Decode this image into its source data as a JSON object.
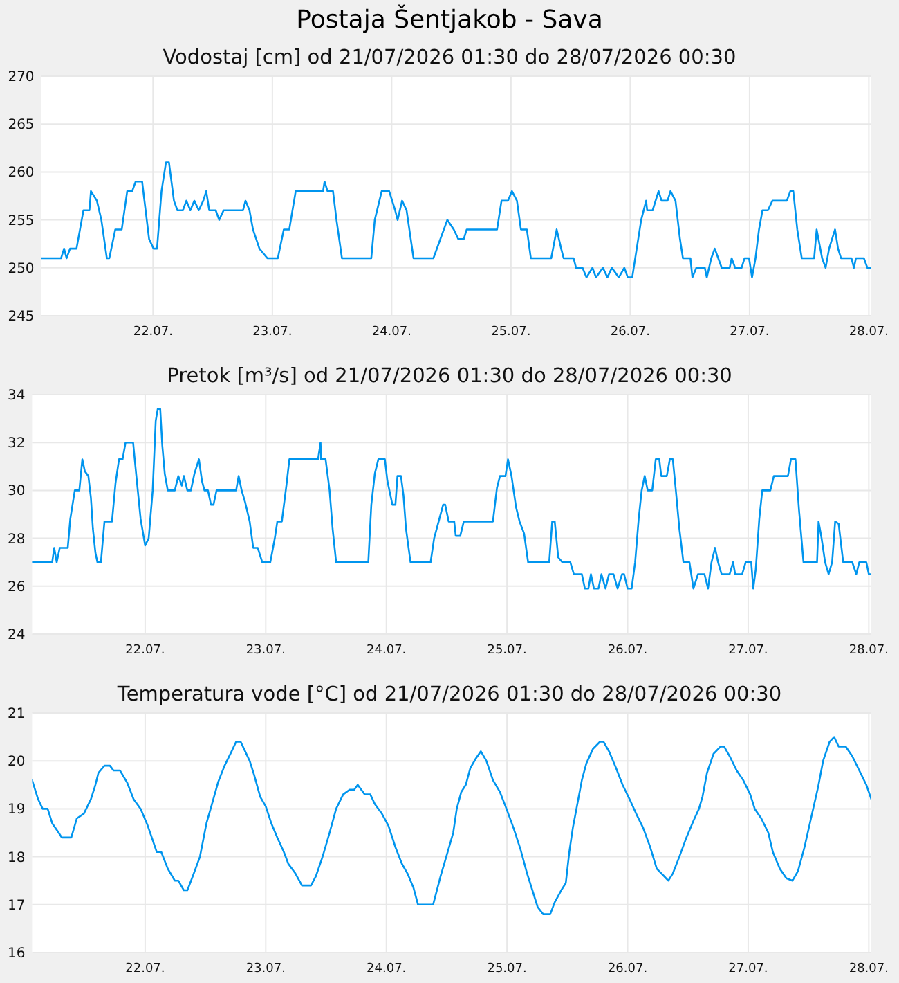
{
  "chart_data": [
    {
      "type": "line",
      "title": "Postaja Šentjakob - Sava",
      "subtitle": "Vodostaj [cm] od 21/07/2026 01:30 do 28/07/2026 00:30",
      "grid": true,
      "x": [
        "2026-07-21T01:30",
        "2026-07-21T05:30",
        "2026-07-21T06:06",
        "2026-07-21T06:36",
        "2026-07-21T07:18",
        "2026-07-21T08:36",
        "2026-07-21T10:00",
        "2026-07-21T11:12",
        "2026-07-21T11:30",
        "2026-07-21T12:42",
        "2026-07-21T13:36",
        "2026-07-21T14:42",
        "2026-07-21T15:12",
        "2026-07-21T16:24",
        "2026-07-21T17:42",
        "2026-07-21T18:48",
        "2026-07-21T19:48",
        "2026-07-21T20:30",
        "2026-07-21T21:48",
        "2026-07-21T23:12",
        "2026-07-22T00:06",
        "2026-07-22T00:48",
        "2026-07-22T01:42",
        "2026-07-22T02:36",
        "2026-07-22T03:12",
        "2026-07-22T04:12",
        "2026-07-22T04:54",
        "2026-07-22T06:00",
        "2026-07-22T06:42",
        "2026-07-22T07:30",
        "2026-07-22T08:18",
        "2026-07-22T09:12",
        "2026-07-22T10:06",
        "2026-07-22T10:42",
        "2026-07-22T11:18",
        "2026-07-22T12:36",
        "2026-07-22T13:18",
        "2026-07-22T14:12",
        "2026-07-22T18:06",
        "2026-07-22T18:36",
        "2026-07-22T19:24",
        "2026-07-22T20:06",
        "2026-07-22T21:24",
        "2026-07-22T23:00",
        "2026-07-23T01:06",
        "2026-07-23T02:18",
        "2026-07-23T03:24",
        "2026-07-23T04:42",
        "2026-07-23T10:12",
        "2026-07-23T10:30",
        "2026-07-23T11:06",
        "2026-07-23T12:12",
        "2026-07-23T12:54",
        "2026-07-23T14:00",
        "2026-07-23T19:54",
        "2026-07-23T20:36",
        "2026-07-23T22:00",
        "2026-07-23T23:30",
        "2026-07-24T00:42",
        "2026-07-24T01:12",
        "2026-07-24T02:06",
        "2026-07-24T03:00",
        "2026-07-24T04:24",
        "2026-07-24T08:24",
        "2026-07-24T09:48",
        "2026-07-24T11:12",
        "2026-07-24T12:30",
        "2026-07-24T13:24",
        "2026-07-24T14:30",
        "2026-07-24T15:06",
        "2026-07-24T21:12",
        "2026-07-24T22:06",
        "2026-07-24T23:24",
        "2026-07-25T00:12",
        "2026-07-25T01:12",
        "2026-07-25T02:00",
        "2026-07-25T03:12",
        "2026-07-25T04:00",
        "2026-07-25T08:06",
        "2026-07-25T09:12",
        "2026-07-25T10:06",
        "2026-07-25T10:36",
        "2026-07-25T12:36",
        "2026-07-25T13:06",
        "2026-07-25T14:24",
        "2026-07-25T15:12",
        "2026-07-25T16:24",
        "2026-07-25T17:06",
        "2026-07-25T18:30",
        "2026-07-25T19:24",
        "2026-07-25T20:18",
        "2026-07-25T21:42",
        "2026-07-25T22:48",
        "2026-07-25T23:30",
        "2026-07-26T00:24",
        "2026-07-26T01:18",
        "2026-07-26T02:12",
        "2026-07-26T03:12",
        "2026-07-26T03:24",
        "2026-07-26T04:30",
        "2026-07-26T05:42",
        "2026-07-26T06:18",
        "2026-07-26T07:30",
        "2026-07-26T08:06",
        "2026-07-26T09:06",
        "2026-07-26T10:00",
        "2026-07-26T10:36",
        "2026-07-26T12:06",
        "2026-07-26T12:30",
        "2026-07-26T13:18",
        "2026-07-26T15:00",
        "2026-07-26T15:24",
        "2026-07-26T16:18",
        "2026-07-26T17:00",
        "2026-07-26T17:42",
        "2026-07-26T18:24",
        "2026-07-26T20:00",
        "2026-07-26T20:24",
        "2026-07-26T21:06",
        "2026-07-26T22:24",
        "2026-07-26T23:00",
        "2026-07-26T23:54",
        "2026-07-27T00:30",
        "2026-07-27T01:12",
        "2026-07-27T01:54",
        "2026-07-27T02:36",
        "2026-07-27T03:42",
        "2026-07-27T04:36",
        "2026-07-27T07:30",
        "2026-07-27T08:12",
        "2026-07-27T08:48",
        "2026-07-27T09:36",
        "2026-07-27T10:30",
        "2026-07-27T13:00",
        "2026-07-27T13:30",
        "2026-07-27T14:36",
        "2026-07-27T15:18",
        "2026-07-27T16:00",
        "2026-07-27T17:12",
        "2026-07-27T17:48",
        "2026-07-27T18:24",
        "2026-07-27T20:30",
        "2026-07-27T21:00",
        "2026-07-27T21:24",
        "2026-07-27T23:00",
        "2026-07-27T23:42",
        "2026-07-28T00:30"
      ],
      "series": [
        {
          "color": "#0095ee",
          "values": [
            251,
            251,
            252,
            251,
            252,
            252,
            256,
            256,
            258,
            257,
            255,
            251,
            251,
            254,
            254,
            258,
            258,
            259,
            259,
            253,
            252,
            252,
            258,
            261,
            261,
            257,
            256,
            256,
            257,
            256,
            257,
            256,
            257,
            258,
            256,
            256,
            255,
            256,
            256,
            257,
            256,
            254,
            252,
            251,
            251,
            254,
            254,
            258,
            258,
            259,
            258,
            258,
            255,
            251,
            251,
            255,
            258,
            258,
            256,
            255,
            257,
            256,
            251,
            251,
            253,
            255,
            254,
            253,
            253,
            254,
            254,
            257,
            257,
            258,
            257,
            254,
            254,
            251,
            251,
            254,
            252,
            251,
            251,
            250,
            250,
            249,
            250,
            249,
            250,
            249,
            250,
            249,
            250,
            249,
            249,
            252,
            255,
            257,
            256,
            256,
            258,
            257,
            257,
            258,
            257,
            253,
            251,
            251,
            249,
            250,
            250,
            249,
            251,
            252,
            251,
            250,
            250,
            251,
            250,
            250,
            251,
            251,
            249,
            251,
            254,
            256,
            256,
            257,
            257,
            258,
            258,
            254,
            251,
            251,
            254,
            251,
            250,
            252,
            254,
            252,
            251,
            251,
            250,
            251,
            251,
            250,
            250
          ]
        }
      ],
      "xlim": [
        "2026-07-21T01:30",
        "2026-07-28T00:30"
      ],
      "xticks": [
        {
          "value": "2026-07-22",
          "label": "22.07."
        },
        {
          "value": "2026-07-23",
          "label": "23.07."
        },
        {
          "value": "2026-07-24",
          "label": "24.07."
        },
        {
          "value": "2026-07-25",
          "label": "25.07."
        },
        {
          "value": "2026-07-26",
          "label": "26.07."
        },
        {
          "value": "2026-07-27",
          "label": "27.07."
        },
        {
          "value": "2026-07-28",
          "label": "28.07."
        }
      ],
      "ylim": [
        245,
        270
      ],
      "yticks": [
        245,
        250,
        255,
        260,
        265,
        270
      ]
    },
    {
      "type": "line",
      "title": "Pretok [m³/s] od 21/07/2026 01:30 do 28/07/2026 00:30",
      "grid": true,
      "x": [
        "2026-07-21T01:30",
        "2026-07-21T05:30",
        "2026-07-21T05:54",
        "2026-07-21T06:24",
        "2026-07-21T07:00",
        "2026-07-21T08:36",
        "2026-07-21T09:06",
        "2026-07-21T10:00",
        "2026-07-21T10:54",
        "2026-07-21T11:30",
        "2026-07-21T12:00",
        "2026-07-21T12:42",
        "2026-07-21T13:12",
        "2026-07-21T13:36",
        "2026-07-21T14:06",
        "2026-07-21T14:30",
        "2026-07-21T15:12",
        "2026-07-21T15:54",
        "2026-07-21T17:24",
        "2026-07-21T18:06",
        "2026-07-21T18:48",
        "2026-07-21T19:30",
        "2026-07-21T20:06",
        "2026-07-21T21:36",
        "2026-07-21T22:12",
        "2026-07-21T23:06",
        "2026-07-22T00:00",
        "2026-07-22T00:42",
        "2026-07-22T01:30",
        "2026-07-22T02:06",
        "2026-07-22T02:30",
        "2026-07-22T03:00",
        "2026-07-22T03:24",
        "2026-07-22T03:54",
        "2026-07-22T04:30",
        "2026-07-22T05:54",
        "2026-07-22T06:36",
        "2026-07-22T07:18",
        "2026-07-22T07:42",
        "2026-07-22T08:24",
        "2026-07-22T09:06",
        "2026-07-22T09:48",
        "2026-07-22T10:42",
        "2026-07-22T11:18",
        "2026-07-22T11:48",
        "2026-07-22T12:30",
        "2026-07-22T13:06",
        "2026-07-22T13:36",
        "2026-07-22T14:12",
        "2026-07-22T18:06",
        "2026-07-22T18:36",
        "2026-07-22T19:12",
        "2026-07-22T19:54",
        "2026-07-22T20:48",
        "2026-07-22T21:30",
        "2026-07-22T22:24",
        "2026-07-22T23:18",
        "2026-07-23T00:54",
        "2026-07-23T01:48",
        "2026-07-23T02:18",
        "2026-07-23T03:12",
        "2026-07-23T04:06",
        "2026-07-23T04:42",
        "2026-07-23T10:24",
        "2026-07-23T10:54",
        "2026-07-23T11:00",
        "2026-07-23T11:54",
        "2026-07-23T12:42",
        "2026-07-23T13:18",
        "2026-07-23T14:00",
        "2026-07-23T20:24",
        "2026-07-23T21:00",
        "2026-07-23T21:42",
        "2026-07-23T22:24",
        "2026-07-23T23:42",
        "2026-07-24T00:12",
        "2026-07-24T01:12",
        "2026-07-24T01:48",
        "2026-07-24T02:12",
        "2026-07-24T02:54",
        "2026-07-24T03:24",
        "2026-07-24T03:54",
        "2026-07-24T04:48",
        "2026-07-24T08:48",
        "2026-07-24T09:30",
        "2026-07-24T10:24",
        "2026-07-24T11:18",
        "2026-07-24T11:42",
        "2026-07-24T12:24",
        "2026-07-24T13:30",
        "2026-07-24T13:48",
        "2026-07-24T14:42",
        "2026-07-24T15:24",
        "2026-07-24T21:12",
        "2026-07-24T22:00",
        "2026-07-24T22:36",
        "2026-07-24T23:42",
        "2026-07-25T00:12",
        "2026-07-25T00:54",
        "2026-07-25T01:48",
        "2026-07-25T02:30",
        "2026-07-25T03:24",
        "2026-07-25T04:12",
        "2026-07-25T08:24",
        "2026-07-25T09:00",
        "2026-07-25T09:30",
        "2026-07-25T10:12",
        "2026-07-25T11:00",
        "2026-07-25T12:36",
        "2026-07-25T13:18",
        "2026-07-25T14:54",
        "2026-07-25T15:30",
        "2026-07-25T16:12",
        "2026-07-25T16:42",
        "2026-07-25T17:18",
        "2026-07-25T18:12",
        "2026-07-25T18:48",
        "2026-07-25T19:36",
        "2026-07-25T20:18",
        "2026-07-25T21:12",
        "2026-07-25T22:00",
        "2026-07-25T22:54",
        "2026-07-25T23:18",
        "2026-07-26T00:00",
        "2026-07-26T00:48",
        "2026-07-26T01:30",
        "2026-07-26T02:12",
        "2026-07-26T02:48",
        "2026-07-26T03:24",
        "2026-07-26T04:00",
        "2026-07-26T04:54",
        "2026-07-26T05:36",
        "2026-07-26T06:18",
        "2026-07-26T06:42",
        "2026-07-26T07:48",
        "2026-07-26T08:24",
        "2026-07-26T09:00",
        "2026-07-26T09:36",
        "2026-07-26T10:18",
        "2026-07-26T11:06",
        "2026-07-26T12:18",
        "2026-07-26T13:06",
        "2026-07-26T14:00",
        "2026-07-26T15:18",
        "2026-07-26T16:00",
        "2026-07-26T16:42",
        "2026-07-26T17:24",
        "2026-07-26T18:00",
        "2026-07-26T18:42",
        "2026-07-26T20:18",
        "2026-07-26T21:00",
        "2026-07-26T21:24",
        "2026-07-26T22:48",
        "2026-07-26T23:30",
        "2026-07-27T00:36",
        "2026-07-27T01:00",
        "2026-07-27T01:30",
        "2026-07-27T02:12",
        "2026-07-27T02:48",
        "2026-07-27T03:18",
        "2026-07-27T04:24",
        "2026-07-27T05:06",
        "2026-07-27T07:54",
        "2026-07-27T08:30",
        "2026-07-27T09:24",
        "2026-07-27T10:06",
        "2026-07-27T11:00",
        "2026-07-27T13:42",
        "2026-07-27T14:00",
        "2026-07-27T14:36",
        "2026-07-27T15:18",
        "2026-07-27T16:00",
        "2026-07-27T16:42",
        "2026-07-27T17:18",
        "2026-07-27T18:00",
        "2026-07-27T18:54",
        "2026-07-27T20:42",
        "2026-07-27T21:30",
        "2026-07-27T22:06",
        "2026-07-27T23:30",
        "2026-07-28T00:00",
        "2026-07-28T00:30"
      ],
      "series": [
        {
          "color": "#0095ee",
          "values": [
            27.0,
            27.0,
            27.6,
            27.0,
            27.6,
            27.6,
            28.8,
            30.0,
            30.0,
            31.3,
            30.8,
            30.6,
            29.7,
            28.4,
            27.4,
            27.0,
            27.0,
            28.7,
            28.7,
            30.3,
            31.3,
            31.3,
            32.0,
            32.0,
            30.7,
            28.8,
            27.7,
            28.0,
            30.0,
            32.9,
            33.4,
            33.4,
            31.9,
            30.7,
            30.0,
            30.0,
            30.6,
            30.2,
            30.6,
            30.0,
            30.0,
            30.7,
            31.3,
            30.4,
            30.0,
            30.0,
            29.4,
            29.4,
            30.0,
            30.0,
            30.6,
            30.0,
            29.5,
            28.7,
            27.6,
            27.6,
            27.0,
            27.0,
            28.0,
            28.7,
            28.7,
            30.2,
            31.3,
            31.3,
            32.0,
            31.3,
            31.3,
            30.0,
            28.4,
            27.0,
            27.0,
            29.4,
            30.7,
            31.3,
            31.3,
            30.4,
            29.4,
            29.4,
            30.6,
            30.6,
            29.8,
            28.4,
            27.0,
            27.0,
            28.0,
            28.7,
            29.4,
            29.4,
            28.7,
            28.7,
            28.1,
            28.1,
            28.7,
            28.7,
            30.1,
            30.6,
            30.6,
            31.3,
            30.6,
            29.3,
            28.7,
            28.2,
            27.0,
            27.0,
            28.7,
            28.7,
            27.2,
            27.0,
            27.0,
            26.5,
            26.5,
            25.9,
            25.9,
            26.5,
            25.9,
            25.9,
            26.5,
            25.9,
            26.5,
            26.5,
            25.9,
            26.5,
            26.5,
            25.9,
            25.9,
            27.0,
            28.8,
            30.0,
            30.6,
            30.0,
            30.0,
            31.3,
            31.3,
            30.6,
            30.6,
            31.3,
            31.3,
            30.0,
            28.4,
            27.0,
            27.0,
            25.9,
            26.5,
            26.5,
            25.9,
            27.0,
            27.6,
            27.0,
            26.5,
            26.5,
            27.0,
            26.5,
            26.5,
            27.0,
            27.0,
            25.9,
            26.7,
            28.8,
            30.0,
            30.0,
            30.0,
            30.6,
            30.6,
            31.3,
            31.3,
            29.2,
            27.0,
            27.0,
            28.7,
            28.0,
            27.0,
            26.5,
            27.0,
            28.7,
            28.6,
            27.0,
            27.0,
            26.5,
            27.0,
            27.0,
            26.5,
            26.5
          ]
        }
      ],
      "xlim": [
        "2026-07-21T01:30",
        "2026-07-28T00:30"
      ],
      "xticks": [
        {
          "value": "2026-07-22",
          "label": "22.07."
        },
        {
          "value": "2026-07-23",
          "label": "23.07."
        },
        {
          "value": "2026-07-24",
          "label": "24.07."
        },
        {
          "value": "2026-07-25",
          "label": "25.07."
        },
        {
          "value": "2026-07-26",
          "label": "26.07."
        },
        {
          "value": "2026-07-27",
          "label": "27.07."
        },
        {
          "value": "2026-07-28",
          "label": "28.07."
        }
      ],
      "ylim": [
        24,
        34
      ],
      "yticks": [
        24,
        26,
        28,
        30,
        32,
        34
      ]
    },
    {
      "type": "line",
      "title": "Temperatura vode [°C] od 21/07/2026 01:30 do 28/07/2026 00:30",
      "grid": true,
      "x": [
        "2026-07-21T01:30",
        "2026-07-21T02:42",
        "2026-07-21T03:36",
        "2026-07-21T04:36",
        "2026-07-21T05:30",
        "2026-07-21T06:48",
        "2026-07-21T07:24",
        "2026-07-21T09:18",
        "2026-07-21T10:24",
        "2026-07-21T11:48",
        "2026-07-21T13:12",
        "2026-07-21T14:06",
        "2026-07-21T14:42",
        "2026-07-21T15:54",
        "2026-07-21T17:00",
        "2026-07-21T17:42",
        "2026-07-21T19:00",
        "2026-07-21T20:24",
        "2026-07-21T21:42",
        "2026-07-21T23:06",
        "2026-07-22T00:30",
        "2026-07-22T02:18",
        "2026-07-22T03:12",
        "2026-07-22T04:30",
        "2026-07-22T05:54",
        "2026-07-22T06:36",
        "2026-07-22T07:42",
        "2026-07-22T08:24",
        "2026-07-22T09:30",
        "2026-07-22T10:54",
        "2026-07-22T12:12",
        "2026-07-22T13:18",
        "2026-07-22T14:30",
        "2026-07-22T15:48",
        "2026-07-22T17:12",
        "2026-07-22T18:06",
        "2026-07-22T19:00",
        "2026-07-22T19:54",
        "2026-07-22T20:48",
        "2026-07-22T21:42",
        "2026-07-22T22:54",
        "2026-07-23T00:00",
        "2026-07-23T01:06",
        "2026-07-23T02:18",
        "2026-07-23T03:36",
        "2026-07-23T04:30",
        "2026-07-23T05:54",
        "2026-07-23T07:12",
        "2026-07-23T09:00",
        "2026-07-23T10:00",
        "2026-07-23T11:18",
        "2026-07-23T12:42",
        "2026-07-23T14:00",
        "2026-07-23T15:24",
        "2026-07-23T16:42",
        "2026-07-23T17:36",
        "2026-07-23T18:18",
        "2026-07-23T19:00",
        "2026-07-23T19:42",
        "2026-07-23T20:48",
        "2026-07-23T21:42",
        "2026-07-23T23:06",
        "2026-07-24T00:24",
        "2026-07-24T01:48",
        "2026-07-24T03:06",
        "2026-07-24T04:12",
        "2026-07-24T05:24",
        "2026-07-24T06:18",
        "2026-07-24T09:18",
        "2026-07-24T10:48",
        "2026-07-24T12:12",
        "2026-07-24T13:18",
        "2026-07-24T14:00",
        "2026-07-24T14:54",
        "2026-07-24T15:48",
        "2026-07-24T16:42",
        "2026-07-24T17:48",
        "2026-07-24T18:48",
        "2026-07-24T19:54",
        "2026-07-24T21:12",
        "2026-07-24T22:36",
        "2026-07-24T23:54",
        "2026-07-25T01:18",
        "2026-07-25T02:42",
        "2026-07-25T04:00",
        "2026-07-25T05:12",
        "2026-07-25T06:06",
        "2026-07-25T07:12",
        "2026-07-25T08:36",
        "2026-07-25T09:30",
        "2026-07-25T10:48",
        "2026-07-25T11:42",
        "2026-07-25T12:24",
        "2026-07-25T13:06",
        "2026-07-25T14:00",
        "2026-07-25T14:54",
        "2026-07-25T15:48",
        "2026-07-25T17:06",
        "2026-07-25T18:30",
        "2026-07-25T19:12",
        "2026-07-25T20:18",
        "2026-07-25T21:42",
        "2026-07-25T23:00",
        "2026-07-26T00:24",
        "2026-07-26T01:42",
        "2026-07-26T03:06",
        "2026-07-26T04:30",
        "2026-07-26T05:48",
        "2026-07-26T07:12",
        "2026-07-26T08:06",
        "2026-07-26T09:00",
        "2026-07-26T10:18",
        "2026-07-26T11:42",
        "2026-07-26T13:06",
        "2026-07-26T14:12",
        "2026-07-26T14:54",
        "2026-07-26T15:48",
        "2026-07-26T17:06",
        "2026-07-26T18:30",
        "2026-07-26T19:12",
        "2026-07-26T20:18",
        "2026-07-26T21:42",
        "2026-07-26T23:00",
        "2026-07-27T00:24",
        "2026-07-27T01:18",
        "2026-07-27T02:36",
        "2026-07-27T04:00",
        "2026-07-27T04:54",
        "2026-07-27T06:18",
        "2026-07-27T07:36",
        "2026-07-27T08:48",
        "2026-07-27T09:54",
        "2026-07-27T11:12",
        "2026-07-27T12:36",
        "2026-07-27T13:54",
        "2026-07-27T14:54",
        "2026-07-27T16:12",
        "2026-07-27T17:06",
        "2026-07-27T18:00",
        "2026-07-27T19:24",
        "2026-07-27T20:42",
        "2026-07-27T22:06",
        "2026-07-27T23:30",
        "2026-07-28T00:30"
      ],
      "series": [
        {
          "color": "#0095ee",
          "values": [
            19.6,
            19.2,
            19.0,
            19.0,
            18.7,
            18.5,
            18.4,
            18.4,
            18.8,
            18.9,
            19.2,
            19.5,
            19.75,
            19.9,
            19.9,
            19.8,
            19.8,
            19.55,
            19.2,
            19.0,
            18.65,
            18.1,
            18.1,
            17.75,
            17.5,
            17.5,
            17.3,
            17.3,
            17.6,
            18.0,
            18.7,
            19.1,
            19.55,
            19.9,
            20.2,
            20.4,
            20.4,
            20.2,
            20.0,
            19.7,
            19.25,
            19.05,
            18.7,
            18.4,
            18.1,
            17.85,
            17.65,
            17.4,
            17.4,
            17.6,
            18.0,
            18.5,
            19.0,
            19.3,
            19.4,
            19.4,
            19.5,
            19.4,
            19.3,
            19.3,
            19.1,
            18.9,
            18.65,
            18.2,
            17.85,
            17.65,
            17.35,
            17.0,
            17.0,
            17.6,
            18.1,
            18.5,
            19.0,
            19.35,
            19.5,
            19.85,
            20.05,
            20.2,
            20.0,
            19.6,
            19.35,
            19.0,
            18.6,
            18.15,
            17.65,
            17.25,
            16.95,
            16.8,
            16.8,
            17.05,
            17.3,
            17.45,
            18.1,
            18.6,
            19.1,
            19.6,
            19.95,
            20.25,
            20.4,
            20.4,
            20.2,
            19.85,
            19.5,
            19.2,
            18.9,
            18.6,
            18.2,
            17.75,
            17.6,
            17.5,
            17.65,
            18.0,
            18.4,
            18.75,
            19.0,
            19.25,
            19.75,
            20.15,
            20.3,
            20.3,
            20.1,
            19.8,
            19.6,
            19.3,
            19.0,
            18.8,
            18.5,
            18.1,
            17.75,
            17.55,
            17.5,
            17.7,
            18.2,
            18.85,
            19.45,
            20.0,
            20.4,
            20.5,
            20.3,
            20.3,
            20.1,
            19.8,
            19.5,
            19.2
          ]
        }
      ],
      "xlim": [
        "2026-07-21T01:30",
        "2026-07-28T00:30"
      ],
      "xticks": [
        {
          "value": "2026-07-22",
          "label": "22.07."
        },
        {
          "value": "2026-07-23",
          "label": "23.07."
        },
        {
          "value": "2026-07-24",
          "label": "24.07."
        },
        {
          "value": "2026-07-25",
          "label": "25.07."
        },
        {
          "value": "2026-07-26",
          "label": "26.07."
        },
        {
          "value": "2026-07-27",
          "label": "27.07."
        },
        {
          "value": "2026-07-28",
          "label": "28.07."
        }
      ],
      "ylim": [
        16,
        21
      ],
      "yticks": [
        16,
        17,
        18,
        19,
        20,
        21
      ]
    }
  ]
}
